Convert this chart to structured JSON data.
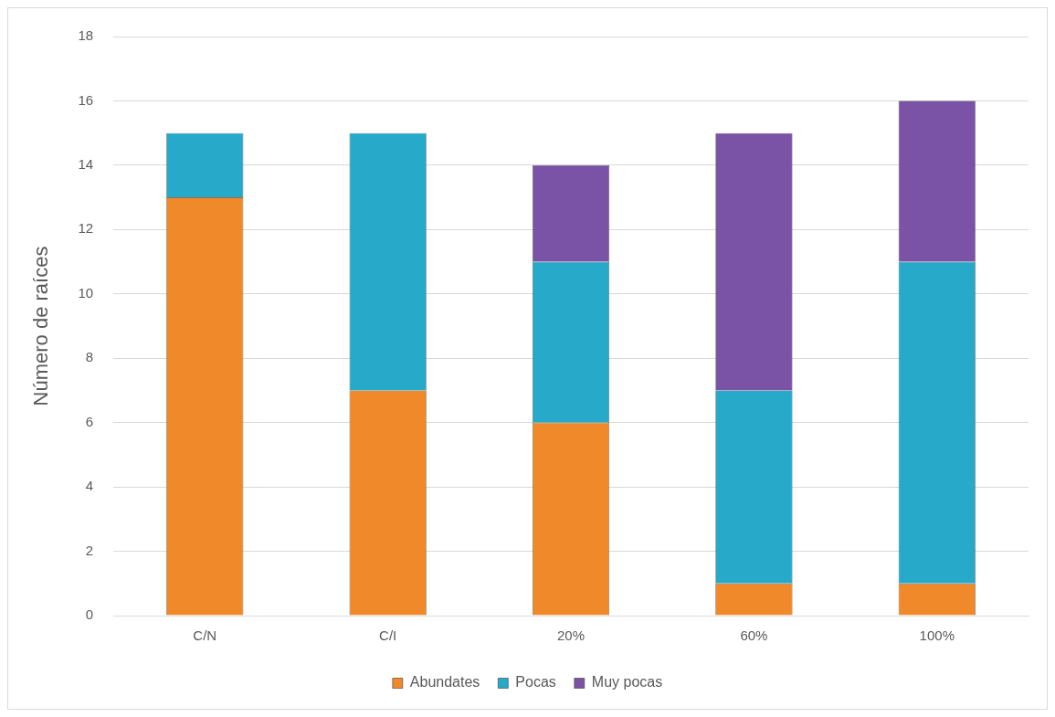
{
  "chart_data": {
    "type": "bar",
    "stacked": true,
    "ylabel": "Número de raíces",
    "categories": [
      "C/N",
      "C/I",
      "20%",
      "60%",
      "100%"
    ],
    "series": [
      {
        "name": "Abundates",
        "color": "#f0892a",
        "values": [
          13,
          7,
          6,
          1,
          1
        ]
      },
      {
        "name": "Pocas",
        "color": "#27a9c9",
        "values": [
          2,
          8,
          5,
          6,
          10
        ]
      },
      {
        "name": "Muy pocas",
        "color": "#7a52a6",
        "values": [
          0,
          0,
          3,
          8,
          5
        ]
      }
    ],
    "ylim": [
      0,
      18
    ],
    "yticks": [
      0,
      2,
      4,
      6,
      8,
      10,
      12,
      14,
      16,
      18
    ],
    "grid": "y",
    "legend": "bottom"
  }
}
